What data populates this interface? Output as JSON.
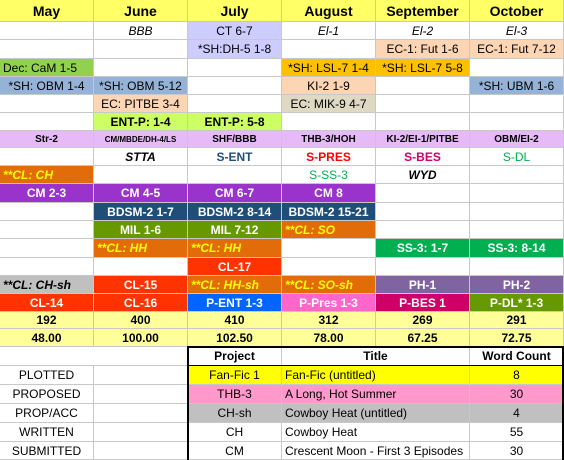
{
  "months": [
    "May",
    "June",
    "July",
    "August",
    "September",
    "October"
  ],
  "row1": [
    "",
    "BBB",
    "CT 6-7",
    "El-1",
    "El-2",
    "El-3"
  ],
  "row2": [
    "",
    "",
    "*SH:DH-5 1-8",
    "",
    "EC-1: Fut 1-6",
    "EC-1: Fut 7-12"
  ],
  "row3": [
    "Dec: CaM 1-5",
    "",
    "",
    "*SH: LSL-7 1-4",
    "*SH: LSL-7 5-8",
    ""
  ],
  "row4": [
    "*SH: OBM 1-4",
    "*SH: OBM 5-12",
    "",
    "KI-2 1-9",
    "",
    "*SH: UBM 1-6"
  ],
  "row5": [
    "",
    "EC: PITBE 3-4",
    "",
    "EC: MIK-9 4-7",
    "",
    ""
  ],
  "row6": [
    "",
    "ENT-P: 1-4",
    "ENT-P: 5-8",
    "",
    "",
    ""
  ],
  "series_codes": [
    "Str-2",
    "CM/MBDE/DH-4/LS",
    "SHF/BBB",
    "THB-3/HOH",
    "KI-2/EI-1/PITBE",
    "OBM/EI-2"
  ],
  "series_names": [
    "",
    "STTA",
    "S-ENT",
    "S-PRES",
    "S-BES",
    "S-DL"
  ],
  "row9": [
    "",
    "",
    "",
    "S-SS-3",
    "",
    ""
  ],
  "row10": [
    "**CL: CH",
    "",
    "",
    "",
    "WYD",
    ""
  ],
  "row11": [
    "CM 2-3",
    "CM 4-5",
    "CM 6-7",
    "CM 8",
    "",
    ""
  ],
  "row12": [
    "",
    "BDSM-2 1-7",
    "BDSM-2 8-14",
    "BDSM-2 15-21",
    "",
    ""
  ],
  "row13": [
    "",
    "MIL 1-6",
    "MIL 7-12",
    "**CL: SO",
    "",
    ""
  ],
  "row14": [
    "",
    "**CL: HH",
    "**CL: HH",
    "",
    "SS-3: 1-7",
    "SS-3: 8-14"
  ],
  "row15": [
    "",
    "",
    "CL-17",
    "",
    "",
    ""
  ],
  "row16": [
    "**CL: CH-sh",
    "CL-15",
    "**CL: HH-sh",
    "**CL: SO-sh",
    "PH-1",
    "PH-2"
  ],
  "row17": [
    "CL-14",
    "CL-16",
    "P-ENT 1-3",
    "P-Pres 1-3",
    "P-BES 1",
    "P-DL* 1-3"
  ],
  "totals_count": [
    "192",
    "400",
    "410",
    "312",
    "269",
    "291"
  ],
  "totals_value": [
    "48.00",
    "100.00",
    "102.50",
    "78.00",
    "67.25",
    "72.75"
  ],
  "status_labels": [
    "PLOTTED",
    "PROPOSED",
    "PROP/ACC",
    "WRITTEN",
    "SUBMITTED"
  ],
  "legend": {
    "headers": {
      "project": "Project",
      "title": "Title",
      "word_count": "Word Count"
    },
    "rows": [
      {
        "project": "Fan-Fic 1",
        "title": "Fan-Fic (untitled)",
        "word_count": "8"
      },
      {
        "project": "THB-3",
        "title": "A Long, Hot Summer",
        "word_count": "30"
      },
      {
        "project": "CH-sh",
        "title": "Cowboy Heat (untitled)",
        "word_count": "4"
      },
      {
        "project": "CH",
        "title": "Cowboy Heat",
        "word_count": "55"
      },
      {
        "project": "CM",
        "title": "Crescent Moon - First 3 Episodes",
        "word_count": "30"
      }
    ]
  },
  "colors": {
    "month_header": "#ffff66",
    "lavender": "#ccccff",
    "orange": "#ffc000",
    "peach": "#fcd5b4",
    "green": "#92d050",
    "light_green": "#ccff66",
    "steel_blue": "#95b3d7",
    "tan": "#ddd9c3",
    "purple": "#9933cc",
    "dark_blue": "#1f4e79",
    "olive": "#669900",
    "brown_orange": "#e26b0a",
    "red_orange": "#ff3300",
    "grey": "#c0c0c0",
    "blue": "#0066ff",
    "pink": "#ff66cc",
    "magenta": "#cc0066",
    "violet": "#8064a2",
    "light_purple": "#e6b9f8",
    "pale_yellow": "#ffff99",
    "green_text": "#00b050",
    "red_text": "#ff0000",
    "pink_text": "#ff66cc",
    "yellow_text": "#ffff00",
    "white": "#ffffff",
    "legend_yellow": "#ffff00",
    "legend_pink": "#ff99cc",
    "legend_grey": "#c0c0c0"
  }
}
